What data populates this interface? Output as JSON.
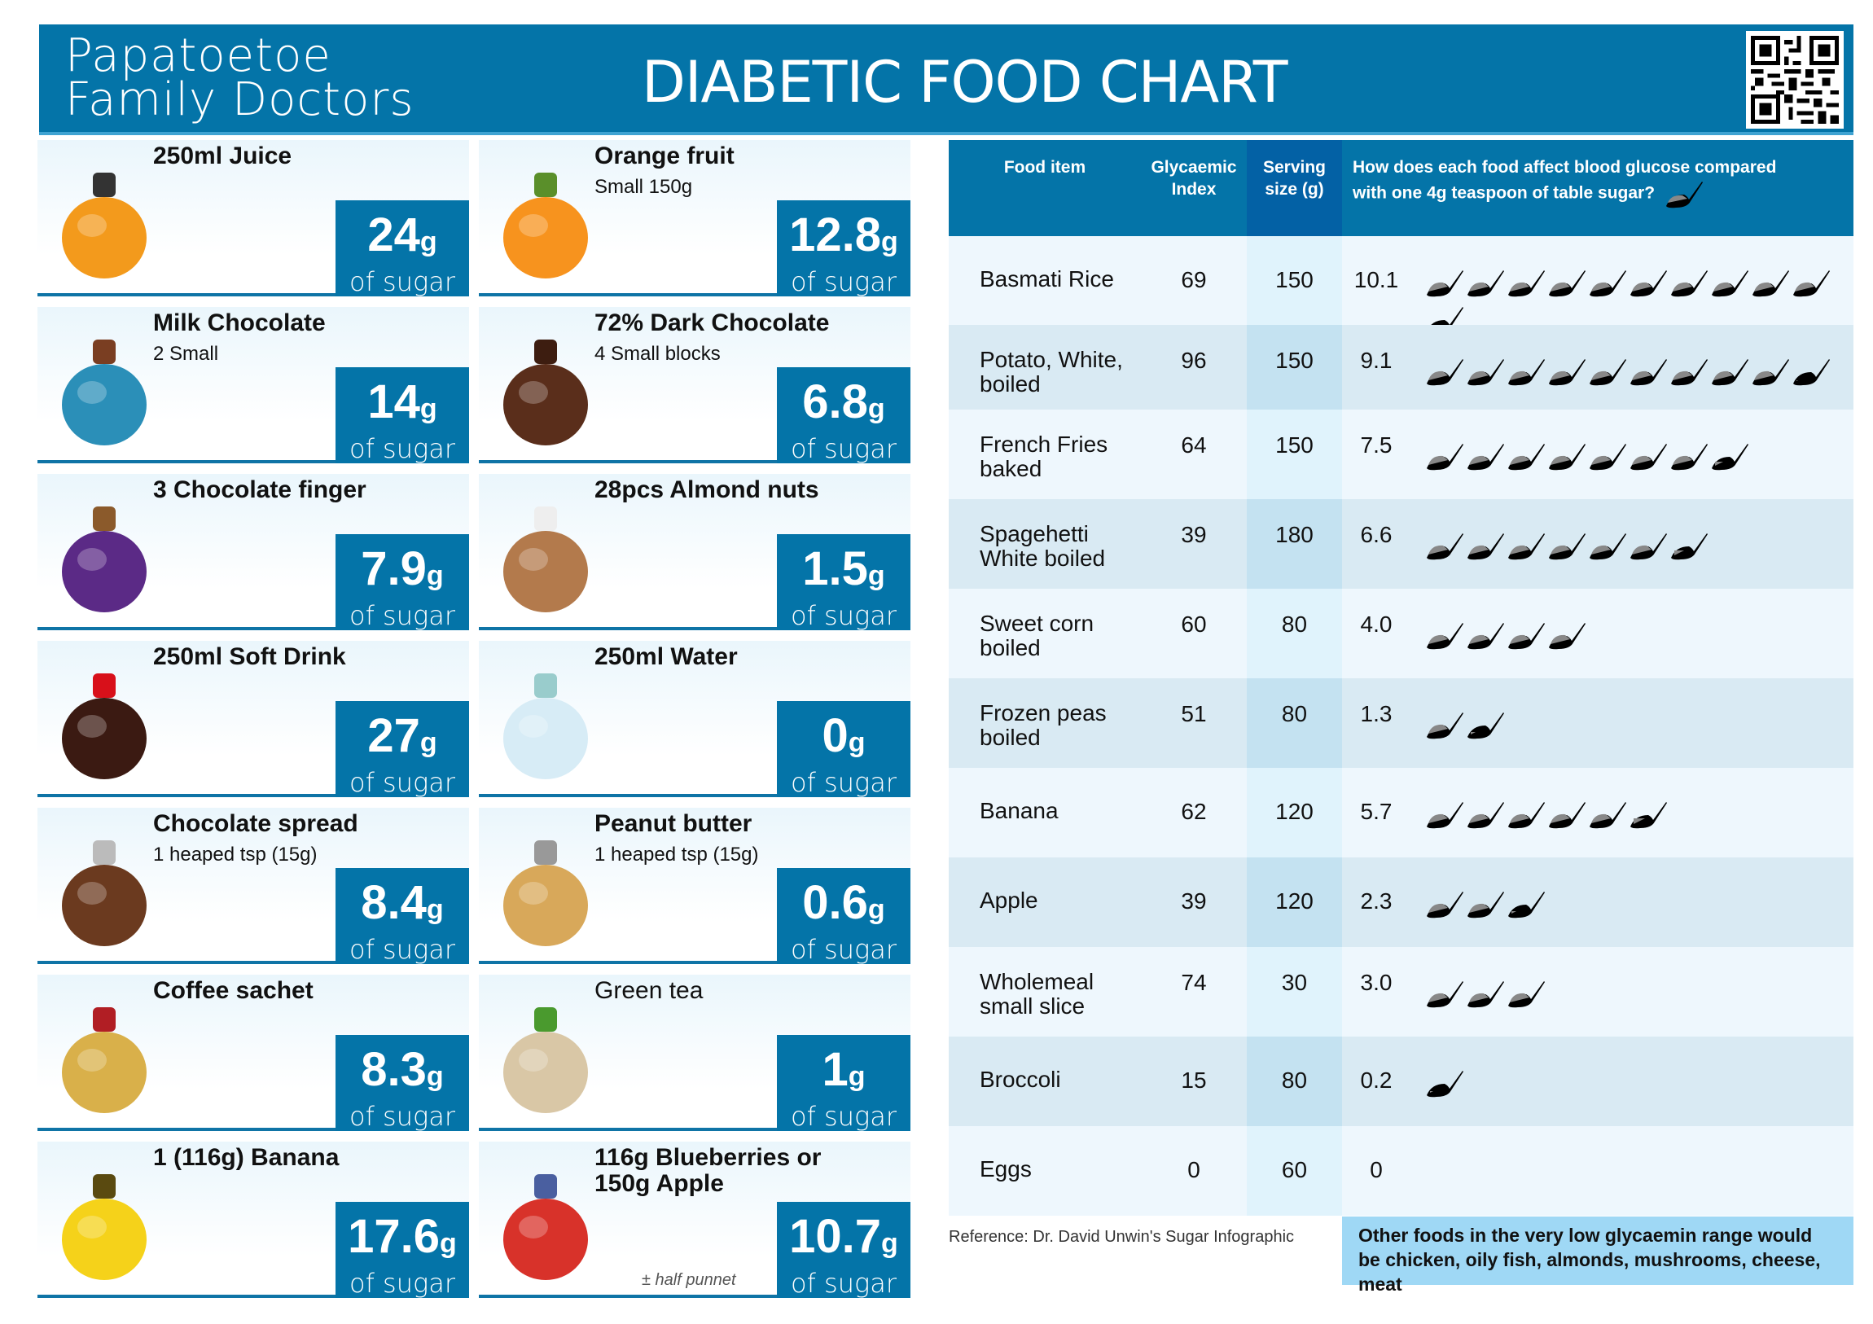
{
  "header": {
    "brand_line1": "Papatoetoe",
    "brand_line2": "Family Doctors",
    "title": "DIABETIC FOOD CHART",
    "qr_icon": "qr-code-icon"
  },
  "colors": {
    "brand_blue": "#0474a8",
    "serving_blue": "#0361a5",
    "note_bg": "#9fd8f5"
  },
  "sugar_unit": "g",
  "sugar_label": "of sugar",
  "cards": [
    {
      "name": "250ml Juice",
      "sub": "",
      "amount": "24",
      "icon": "juice-bottle-icon"
    },
    {
      "name": "Orange fruit",
      "sub": "Small 150g",
      "amount": "12.8",
      "icon": "orange-icon"
    },
    {
      "name": "Milk Chocolate",
      "sub": "2 Small",
      "amount": "14",
      "icon": "milk-chocolate-icon"
    },
    {
      "name": "72% Dark Chocolate",
      "sub": "4 Small blocks",
      "amount": "6.8",
      "icon": "dark-chocolate-icon"
    },
    {
      "name": "3 Chocolate finger",
      "sub": "",
      "amount": "7.9",
      "icon": "chocolate-finger-icon"
    },
    {
      "name": "28pcs Almond nuts",
      "sub": "",
      "amount": "1.5",
      "icon": "almonds-icon"
    },
    {
      "name": "250ml Soft Drink",
      "sub": "",
      "amount": "27",
      "icon": "soft-drink-icon"
    },
    {
      "name": "250ml Water",
      "sub": "",
      "amount": "0",
      "icon": "water-glass-icon"
    },
    {
      "name": "Chocolate spread",
      "sub": "1 heaped tsp (15g)",
      "amount": "8.4",
      "icon": "chocolate-spread-icon"
    },
    {
      "name": "Peanut butter",
      "sub": "1 heaped tsp (15g)",
      "amount": "0.6",
      "icon": "peanut-butter-icon"
    },
    {
      "name": "Coffee sachet",
      "sub": "",
      "amount": "8.3",
      "icon": "coffee-sachet-icon"
    },
    {
      "name": "Green tea",
      "sub": "",
      "amount": "1",
      "icon": "tea-bag-icon"
    },
    {
      "name": "1 (116g) Banana",
      "sub": "",
      "amount": "17.6",
      "icon": "banana-icon"
    },
    {
      "name": "116g Blueberries or 150g Apple",
      "sub": "",
      "amount": "10.7",
      "icon": "apple-blueberries-icon",
      "note": "± half punnet"
    }
  ],
  "table": {
    "headers": {
      "food": "Food item",
      "gi_1": "Glycaemic",
      "gi_2": "Index",
      "serving_1": "Serving",
      "serving_2": "size (g)",
      "question_1": "How does each food affect blood glucose compared",
      "question_2": "with one 4g teaspoon of table sugar?"
    },
    "rows": [
      {
        "food": "Basmati Rice",
        "food2": "",
        "gi": "69",
        "serving": "150",
        "teaspoons": "10.1",
        "spoons": 10.1
      },
      {
        "food": "Potato, White,",
        "food2": "boiled",
        "gi": "96",
        "serving": "150",
        "teaspoons": "9.1",
        "spoons": 9.1
      },
      {
        "food": "French Fries",
        "food2": "baked",
        "gi": "64",
        "serving": "150",
        "teaspoons": "7.5",
        "spoons": 7.5
      },
      {
        "food": "Spagehetti",
        "food2": "White boiled",
        "gi": "39",
        "serving": "180",
        "teaspoons": "6.6",
        "spoons": 6.6
      },
      {
        "food": "Sweet corn",
        "food2": "boiled",
        "gi": "60",
        "serving": "80",
        "teaspoons": "4.0",
        "spoons": 4.0
      },
      {
        "food": "Frozen peas",
        "food2": "boiled",
        "gi": "51",
        "serving": "80",
        "teaspoons": "1.3",
        "spoons": 1.3
      },
      {
        "food": "Banana",
        "food2": "",
        "gi": "62",
        "serving": "120",
        "teaspoons": "5.7",
        "spoons": 5.7
      },
      {
        "food": "Apple",
        "food2": "",
        "gi": "39",
        "serving": "120",
        "teaspoons": "2.3",
        "spoons": 2.3
      },
      {
        "food": "Wholemeal",
        "food2": "small slice",
        "gi": "74",
        "serving": "30",
        "teaspoons": "3.0",
        "spoons": 3.0
      },
      {
        "food": "Broccoli",
        "food2": "",
        "gi": "15",
        "serving": "80",
        "teaspoons": "0.2",
        "spoons": 0.2
      },
      {
        "food": "Eggs",
        "food2": "",
        "gi": "0",
        "serving": "60",
        "teaspoons": "0",
        "spoons": 0
      }
    ]
  },
  "footer": {
    "reference": "Reference: Dr. David Unwin's Sugar Infographic",
    "note": "Other foods in the very low glycaemin range would be chicken, oily fish, almonds, mushrooms, cheese, meat"
  }
}
